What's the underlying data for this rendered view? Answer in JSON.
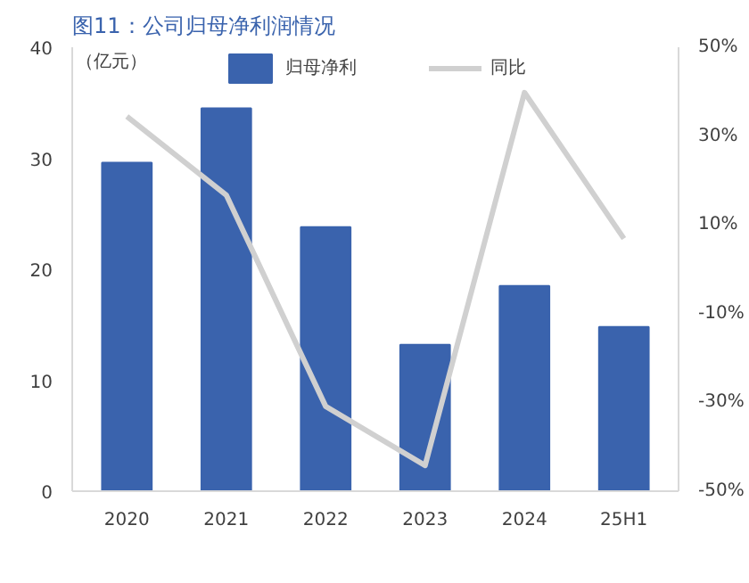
{
  "chart_data": {
    "type": "bar",
    "title": "图11：公司归母净利润情况",
    "ylabel": "（亿元）",
    "categories": [
      "2020",
      "2021",
      "2022",
      "2023",
      "2024",
      "25H1"
    ],
    "series": [
      {
        "name": "归母净利",
        "color": "#3a63ad",
        "values": [
          29.6,
          34.5,
          23.8,
          13.2,
          18.5,
          14.8
        ]
      },
      {
        "name": "同比",
        "type": "line",
        "axis": "y2",
        "color": "#d0d0d0",
        "values": [
          34.4,
          16.7,
          -30.9,
          -44.2,
          39.8,
          6.9
        ]
      }
    ],
    "ylim": [
      0,
      40
    ],
    "yticks": [
      0,
      10,
      20,
      30,
      40
    ],
    "y2lim": [
      -50,
      50
    ],
    "y2ticks": [
      {
        "value": -50,
        "label": "-50%"
      },
      {
        "value": -30,
        "label": "-30%"
      },
      {
        "value": -10,
        "label": "-10%"
      },
      {
        "value": 10,
        "label": "10%"
      },
      {
        "value": 30,
        "label": "30%"
      },
      {
        "value": 50,
        "label": "50%"
      }
    ],
    "grid": false,
    "legend": "top"
  }
}
